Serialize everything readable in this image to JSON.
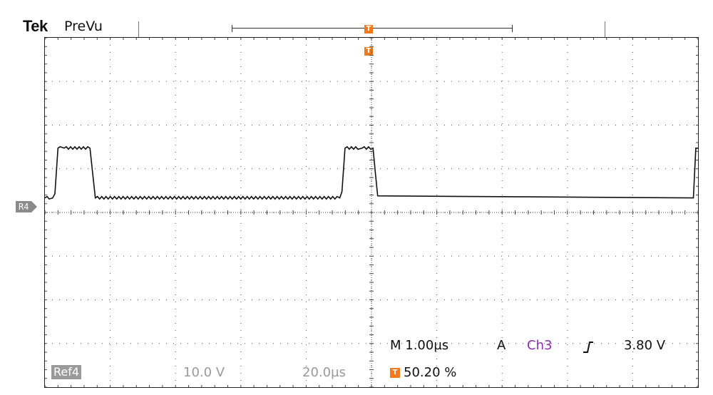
{
  "header": {
    "brand": "Tek",
    "mode": "PreVu",
    "trigger_marker": "T"
  },
  "channel_marker": "R4",
  "readout": {
    "timebase": "M 1.00µs",
    "acquire": "A",
    "trigger_source": "Ch3",
    "trigger_slope_icon": "rising-edge-icon",
    "trigger_level": "3.80 V",
    "ref_label": "Ref4",
    "ref_scale": "10.0 V",
    "ref_timebase": "20.0µs",
    "trigger_position": "50.20 %"
  },
  "colors": {
    "trigger_orange": "#f07a1c",
    "ch3_purple": "#8a2fb0",
    "ref_grey": "#9a9a9a"
  },
  "chart_data": {
    "type": "line",
    "grid": true,
    "divisions": {
      "x": 10,
      "y": 8
    },
    "series": [
      {
        "x": [
          0.0,
          0.25,
          0.32,
          0.42,
          0.62,
          1.45,
          1.52,
          1.62,
          9.48,
          9.55,
          9.65,
          10.2,
          10.55,
          10.62,
          10.7,
          20.85,
          20.93,
          21.0
        ],
        "y": [
          0.35,
          0.35,
          0.45,
          1.55,
          1.55,
          1.55,
          1.05,
          0.35,
          0.35,
          0.5,
          1.55,
          1.55,
          1.55,
          1.0,
          0.4,
          0.35,
          1.55,
          1.55
        ]
      }
    ]
  }
}
